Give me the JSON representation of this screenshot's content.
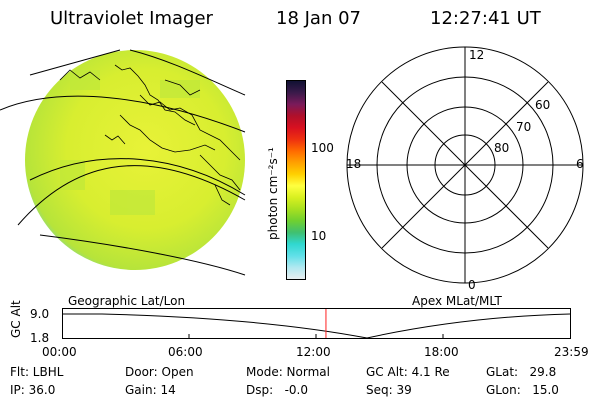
{
  "header": {
    "title": "Ultraviolet Imager",
    "date": "18 Jan 07",
    "time": "12:27:41 UT"
  },
  "colorbar": {
    "unit": "photon cm⁻²s⁻¹",
    "tick_labels": [
      "100",
      "10"
    ],
    "stops": [
      "#111133",
      "#3a1a4a",
      "#7a1a5a",
      "#b0102a",
      "#d81020",
      "#ee3010",
      "#ff6a00",
      "#ffa000",
      "#ffd000",
      "#ffff40",
      "#d8f020",
      "#a8e020",
      "#70d030",
      "#40c070",
      "#30d8d0",
      "#60e0e8",
      "#b0e8f0",
      "#e8eef0"
    ]
  },
  "geo_panel": {
    "label": "Geographic Lat/Lon",
    "disk_color": "#d8ee30"
  },
  "polar_panel": {
    "label": "Apex MLat/MLT",
    "mlt_labels": {
      "top": "12",
      "left": "18",
      "right": "6",
      "bottom": "0"
    },
    "mlat_labels": [
      "60",
      "70",
      "80"
    ]
  },
  "altitude_plot": {
    "ylabel": "GC Alt",
    "yticks": [
      "9.0",
      "1.8"
    ],
    "xticks": [
      "00:00",
      "06:00",
      "12:00",
      "18:00",
      "23:59"
    ],
    "current_time_marker": "12:27:41",
    "marker_color": "#ff2020"
  },
  "info": {
    "filter": "Flt: LBHL",
    "door": "Door: Open",
    "mode": "Mode: Normal",
    "gc_alt": "GC Alt: 4.1 Re",
    "glat": "GLat:   29.8",
    "ip": "IP: 36.0",
    "gain": "Gain: 14",
    "dsp": "Dsp:   -0.0",
    "seq": "Seq: 39",
    "glon": "GLon:   15.0"
  }
}
